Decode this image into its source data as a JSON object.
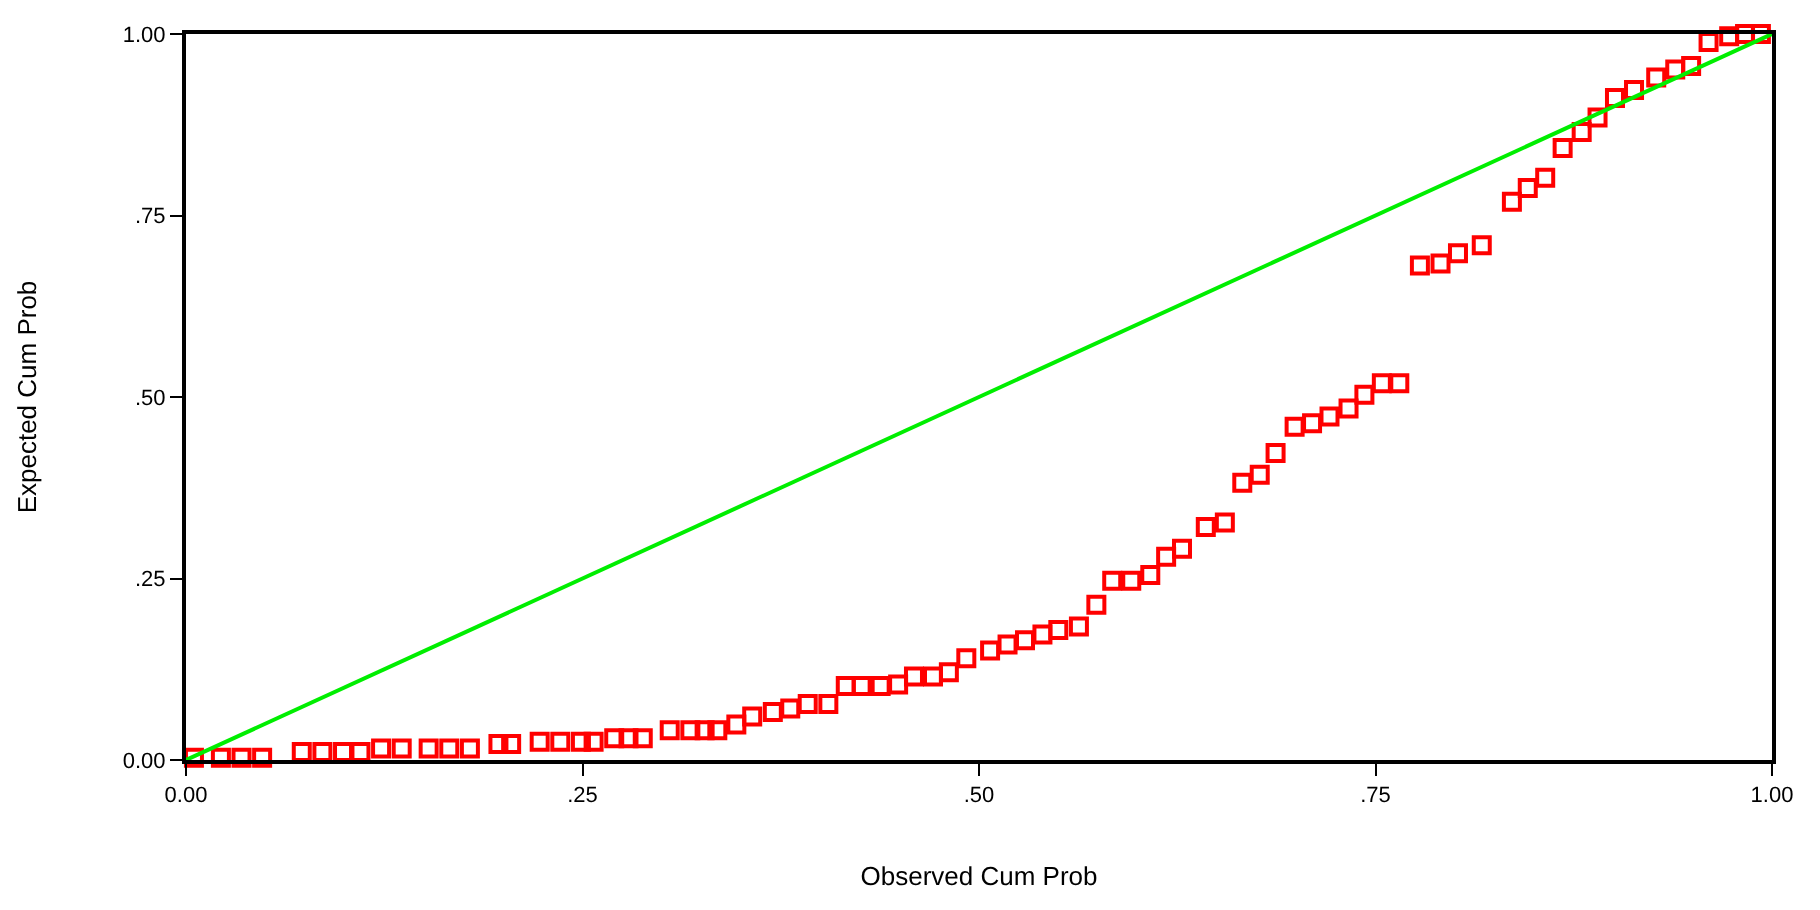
{
  "chart_data": {
    "type": "scatter",
    "xlabel": "Observed Cum Prob",
    "ylabel": "Expected Cum Prob",
    "xlim": [
      0,
      1
    ],
    "ylim": [
      0,
      1
    ],
    "xticks": [
      {
        "value": 0,
        "label": "0.00"
      },
      {
        "value": 0.25,
        "label": ".25"
      },
      {
        "value": 0.5,
        "label": ".50"
      },
      {
        "value": 0.75,
        "label": ".75"
      },
      {
        "value": 1,
        "label": "1.00"
      }
    ],
    "yticks": [
      {
        "value": 0,
        "label": "0.00"
      },
      {
        "value": 0.25,
        "label": ".25"
      },
      {
        "value": 0.5,
        "label": ".50"
      },
      {
        "value": 0.75,
        "label": ".75"
      },
      {
        "value": 1,
        "label": "1.00"
      }
    ],
    "series": [
      {
        "color": "#ff0000",
        "marker": "square",
        "x": [
          0.005,
          0.022,
          0.035,
          0.048,
          0.073,
          0.086,
          0.099,
          0.11,
          0.123,
          0.136,
          0.153,
          0.166,
          0.179,
          0.197,
          0.205,
          0.223,
          0.236,
          0.249,
          0.257,
          0.27,
          0.279,
          0.288,
          0.305,
          0.318,
          0.327,
          0.335,
          0.347,
          0.357,
          0.37,
          0.381,
          0.392,
          0.405,
          0.416,
          0.426,
          0.438,
          0.449,
          0.459,
          0.471,
          0.481,
          0.492,
          0.507,
          0.518,
          0.529,
          0.54,
          0.55,
          0.563,
          0.574,
          0.584,
          0.596,
          0.608,
          0.618,
          0.628,
          0.643,
          0.655,
          0.666,
          0.677,
          0.687,
          0.699,
          0.71,
          0.721,
          0.733,
          0.743,
          0.754,
          0.765,
          0.778,
          0.791,
          0.802,
          0.817,
          0.836,
          0.846,
          0.857,
          0.868,
          0.88,
          0.89,
          0.901,
          0.913,
          0.927,
          0.939,
          0.949,
          0.96,
          0.973,
          0.983,
          0.993
        ],
        "values": [
          0.003,
          0.003,
          0.003,
          0.003,
          0.011,
          0.011,
          0.011,
          0.011,
          0.016,
          0.016,
          0.016,
          0.016,
          0.016,
          0.022,
          0.022,
          0.025,
          0.025,
          0.025,
          0.025,
          0.03,
          0.03,
          0.03,
          0.041,
          0.041,
          0.041,
          0.041,
          0.049,
          0.06,
          0.066,
          0.071,
          0.077,
          0.077,
          0.102,
          0.102,
          0.102,
          0.104,
          0.115,
          0.115,
          0.121,
          0.14,
          0.151,
          0.159,
          0.165,
          0.173,
          0.179,
          0.184,
          0.214,
          0.247,
          0.247,
          0.255,
          0.28,
          0.291,
          0.321,
          0.327,
          0.382,
          0.393,
          0.423,
          0.459,
          0.464,
          0.473,
          0.484,
          0.503,
          0.519,
          0.519,
          0.681,
          0.684,
          0.698,
          0.709,
          0.769,
          0.788,
          0.802,
          0.843,
          0.865,
          0.885,
          0.912,
          0.923,
          0.94,
          0.951,
          0.956,
          0.989,
          0.997,
          1.0,
          1.0
        ]
      },
      {
        "type": "line",
        "color": "#00ee00",
        "marker": "none",
        "line_style": "solid",
        "x": [
          0,
          1
        ],
        "values": [
          0,
          1
        ]
      }
    ]
  }
}
